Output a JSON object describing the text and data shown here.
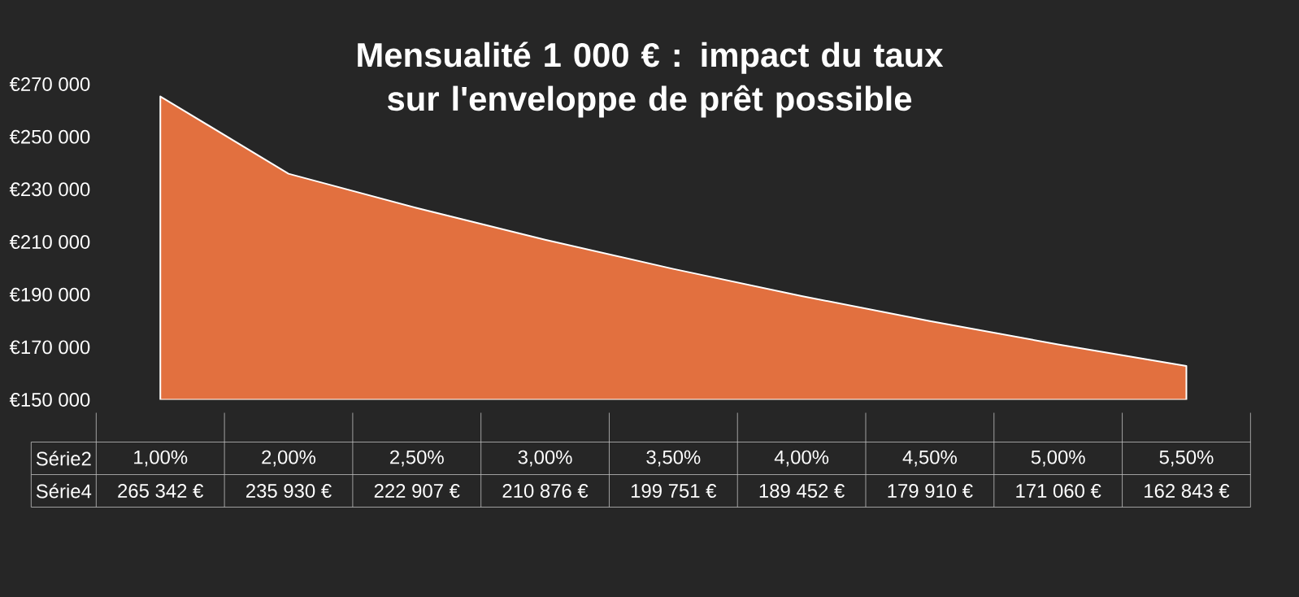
{
  "chart_data": {
    "type": "area",
    "title": "Mensualité 1 000 € : impact du taux sur l'enveloppe de prêt possible",
    "xlabel": "Série2",
    "categories": [
      "1,00%",
      "2,00%",
      "2,50%",
      "3,00%",
      "3,50%",
      "4,00%",
      "4,50%",
      "5,00%",
      "5,50%"
    ],
    "series": [
      {
        "name": "Série4",
        "color": "#e2703f",
        "values": [
          265342,
          235930,
          222907,
          210876,
          199751,
          189452,
          179910,
          171060,
          162843
        ],
        "value_labels": [
          "265 342 €",
          "235 930 €",
          "222 907 €",
          "210 876 €",
          "199 751 €",
          "189 452 €",
          "179 910 €",
          "171 060 €",
          "162 843 €"
        ]
      }
    ],
    "ylim": [
      150000,
      270000
    ],
    "yticks": [
      {
        "value": 150000,
        "label": "€150 000"
      },
      {
        "value": 170000,
        "label": "€170 000"
      },
      {
        "value": 190000,
        "label": "€190 000"
      },
      {
        "value": 210000,
        "label": "€210 000"
      },
      {
        "value": 230000,
        "label": "€230 000"
      },
      {
        "value": 250000,
        "label": "€250 000"
      },
      {
        "value": 270000,
        "label": "€270 000"
      }
    ]
  }
}
